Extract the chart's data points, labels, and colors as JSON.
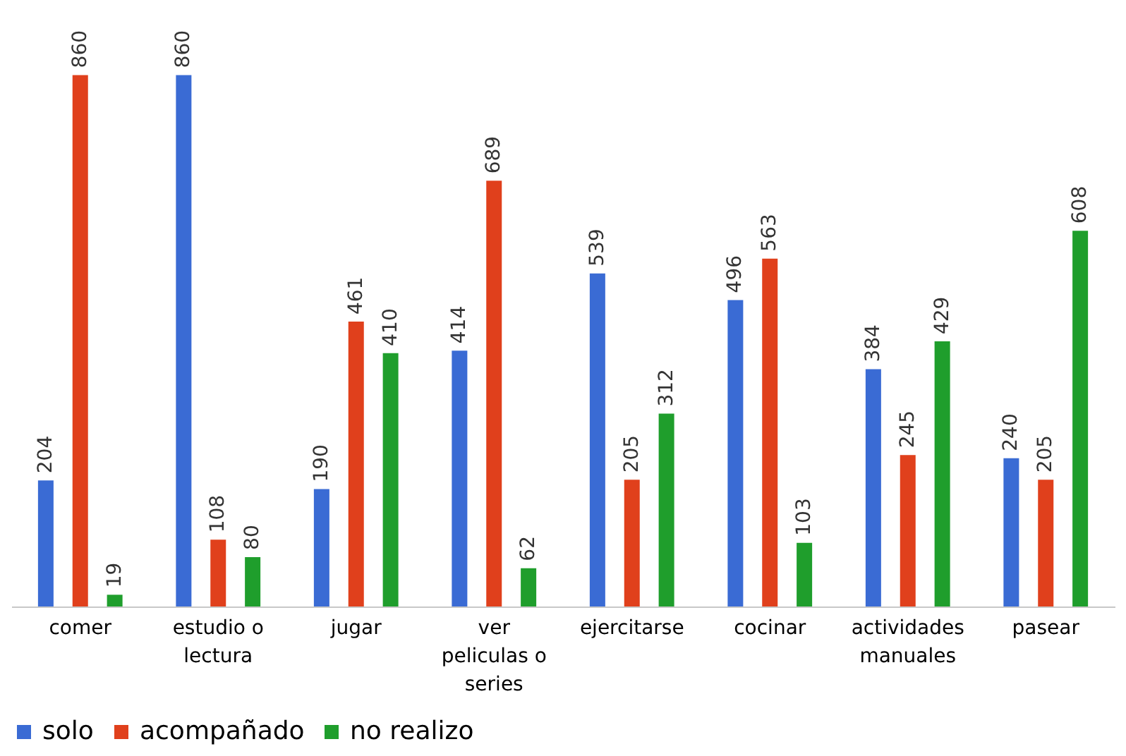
{
  "chart_data": {
    "type": "bar",
    "categories": [
      "comer",
      "estudio o lectura",
      "jugar",
      "ver peliculas o series",
      "ejercitarse",
      "cocinar",
      "actividades manuales",
      "pasear"
    ],
    "series": [
      {
        "name": "solo",
        "color": "#3a6bd4",
        "values": [
          204,
          860,
          190,
          414,
          539,
          496,
          384,
          240
        ]
      },
      {
        "name": "acompañado",
        "color": "#e0401c",
        "values": [
          860,
          108,
          461,
          689,
          205,
          563,
          245,
          205
        ]
      },
      {
        "name": "no realizo",
        "color": "#1f9e2c",
        "values": [
          19,
          80,
          410,
          62,
          312,
          103,
          429,
          608
        ]
      }
    ],
    "data_labels": true,
    "legend": "bottom",
    "grid": false
  }
}
